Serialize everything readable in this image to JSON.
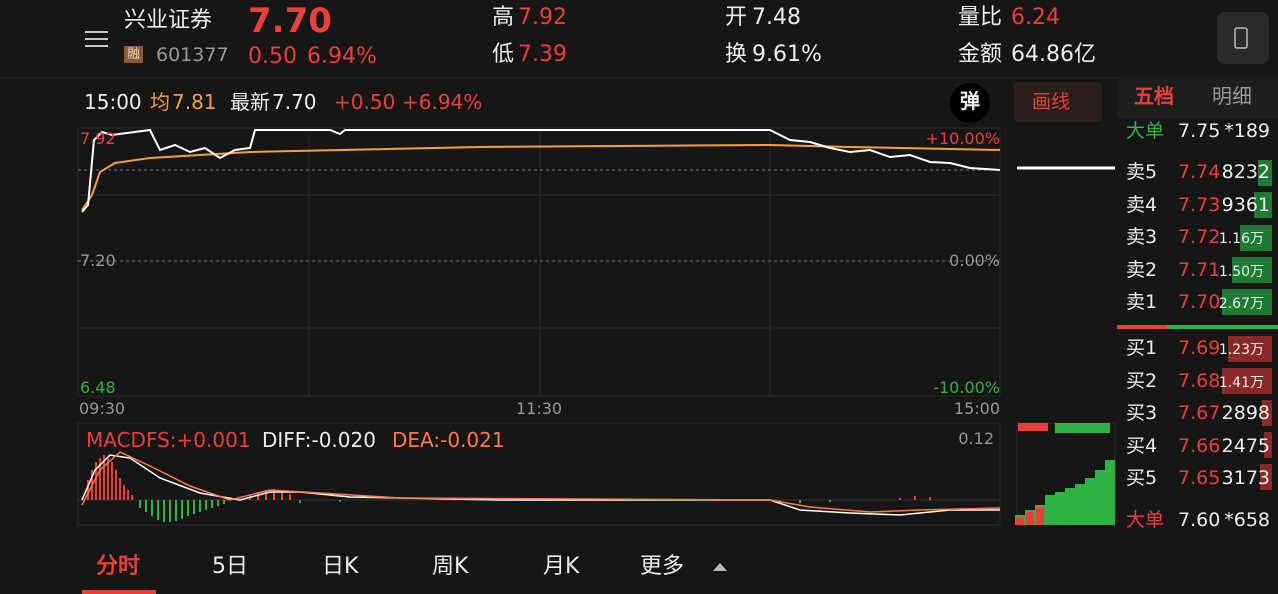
{
  "header": {
    "name": "兴业证券",
    "price": "7.70",
    "tag": "融",
    "code": "601377",
    "change": "0.50",
    "change_pct": "6.94%",
    "high_label": "高",
    "high": "7.92",
    "low_label": "低",
    "low": "7.39",
    "open_label": "开",
    "open": "7.48",
    "turnover_label": "换",
    "turnover": "9.61%",
    "vol_ratio_label": "量比",
    "vol_ratio": "6.24",
    "amount_label": "金额",
    "amount": "64.86亿"
  },
  "info": {
    "time": "15:00",
    "avg_label": "均",
    "avg": "7.81",
    "latest_label": "最新",
    "latest": "7.70",
    "change": "+0.50",
    "change_pct": "+6.94%",
    "pop": "弹",
    "draw": "画线"
  },
  "panel_tabs": [
    "五档",
    "明细"
  ],
  "price_axis": {
    "top": "7.92",
    "top_pct": "+10.00%",
    "mid": "7.20",
    "mid_pct": "0.00%",
    "bottom": "6.48",
    "bottom_pct": "-10.00%",
    "times": [
      "09:30",
      "11:30",
      "15:00"
    ]
  },
  "macd": {
    "macdfs": "MACDFS:+0.001",
    "diff": "DIFF:-0.020",
    "dea": "DEA:-0.021",
    "max": "0.12"
  },
  "order_book": {
    "big_top": {
      "label": "大单",
      "price": "7.75",
      "vol": "*189"
    },
    "sells": [
      {
        "label": "卖5",
        "price": "7.74",
        "vol": "8232"
      },
      {
        "label": "卖4",
        "price": "7.73",
        "vol": "9361"
      },
      {
        "label": "卖3",
        "price": "7.72",
        "vol": "1.16万"
      },
      {
        "label": "卖2",
        "price": "7.71",
        "vol": "1.50万"
      },
      {
        "label": "卖1",
        "price": "7.70",
        "vol": "2.67万"
      }
    ],
    "buys": [
      {
        "label": "买1",
        "price": "7.69",
        "vol": "1.23万"
      },
      {
        "label": "买2",
        "price": "7.68",
        "vol": "1.41万"
      },
      {
        "label": "买3",
        "price": "7.67",
        "vol": "2898"
      },
      {
        "label": "买4",
        "price": "7.66",
        "vol": "2475"
      },
      {
        "label": "买5",
        "price": "7.65",
        "vol": "3173"
      }
    ],
    "big_bottom": {
      "label": "大单",
      "price": "7.60",
      "vol": "*658"
    }
  },
  "tabs": [
    "分时",
    "5日",
    "日K",
    "周K",
    "月K",
    "更多"
  ]
}
